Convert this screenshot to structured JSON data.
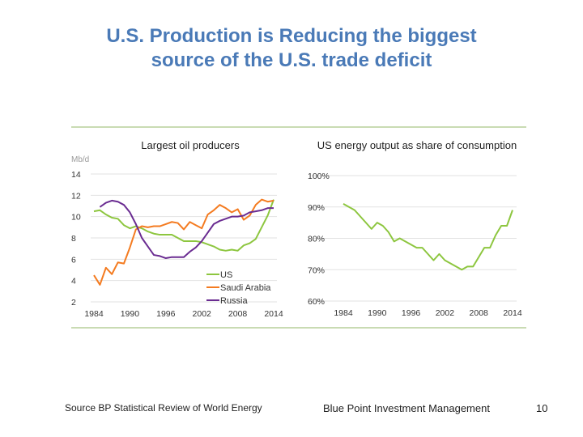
{
  "slide": {
    "title_line1": "U.S. Production is Reducing the biggest",
    "title_line2": "source of the U.S. trade deficit",
    "source": "Source BP Statistical Review of World Energy",
    "company": "Blue Point Investment Management",
    "page_number": "10"
  },
  "chart_data": [
    {
      "type": "line",
      "title": "Largest oil producers",
      "ylabel": "Mb/d",
      "ylim": [
        2,
        14
      ],
      "yticks": [
        "2",
        "4",
        "6",
        "8",
        "10",
        "12",
        "14"
      ],
      "xticks": [
        "1984",
        "1990",
        "1996",
        "2002",
        "2008",
        "2014"
      ],
      "xlim": [
        1984,
        2014
      ],
      "grid": true,
      "legend": "bottom-right",
      "x_start": 1984,
      "series": [
        {
          "name": "US",
          "color": "#8dc63f",
          "start": 1984,
          "values": [
            10.5,
            10.6,
            10.2,
            9.9,
            9.8,
            9.2,
            8.9,
            9.1,
            8.9,
            8.6,
            8.4,
            8.3,
            8.3,
            8.3,
            8.0,
            7.7,
            7.7,
            7.7,
            7.6,
            7.4,
            7.2,
            6.9,
            6.8,
            6.9,
            6.8,
            7.3,
            7.5,
            7.9,
            9.0,
            10.1,
            11.6
          ]
        },
        {
          "name": "Saudi Arabia",
          "color": "#f47b20",
          "start": 1984,
          "values": [
            4.5,
            3.6,
            5.2,
            4.6,
            5.7,
            5.6,
            7.1,
            8.8,
            9.1,
            9.0,
            9.1,
            9.1,
            9.3,
            9.5,
            9.4,
            8.8,
            9.5,
            9.2,
            8.9,
            10.2,
            10.6,
            11.1,
            10.8,
            10.4,
            10.7,
            9.7,
            10.1,
            11.1,
            11.6,
            11.4,
            11.5
          ]
        },
        {
          "name": "Russia",
          "color": "#6a2c91",
          "start": 1985,
          "values": [
            10.9,
            11.3,
            11.5,
            11.4,
            11.1,
            10.4,
            9.3,
            8.0,
            7.2,
            6.4,
            6.3,
            6.1,
            6.2,
            6.2,
            6.2,
            6.7,
            7.1,
            7.7,
            8.5,
            9.3,
            9.6,
            9.8,
            10.0,
            10.0,
            10.1,
            10.4,
            10.5,
            10.6,
            10.8,
            10.8
          ]
        }
      ]
    },
    {
      "type": "line",
      "title": "US energy output as share of consumption",
      "ylim": [
        60,
        100
      ],
      "yticks": [
        "60%",
        "70%",
        "80%",
        "90%",
        "100%"
      ],
      "xticks": [
        "1984",
        "1990",
        "1996",
        "2002",
        "2008",
        "2014"
      ],
      "xlim": [
        1984,
        2014
      ],
      "grid": true,
      "series": [
        {
          "color": "#8dc63f",
          "start": 1984,
          "values": [
            91,
            90,
            89,
            87,
            85,
            83,
            85,
            84,
            82,
            79,
            80,
            79,
            78,
            77,
            77,
            75,
            73,
            75,
            73,
            72,
            71,
            70,
            71,
            71,
            74,
            77,
            77,
            81,
            84,
            84,
            89
          ]
        }
      ]
    }
  ]
}
